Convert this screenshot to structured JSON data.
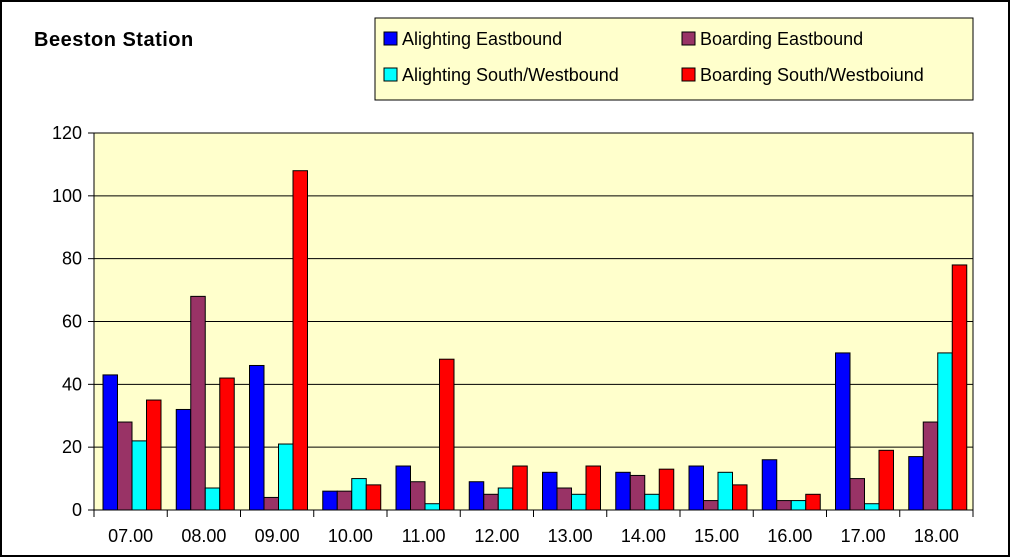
{
  "chart_data": {
    "type": "bar",
    "title": "Beeston Station",
    "xlabel": "",
    "ylabel": "",
    "ylim": [
      0,
      120
    ],
    "yticks": [
      0,
      20,
      40,
      60,
      80,
      100,
      120
    ],
    "grid": true,
    "legend_position": "top-right",
    "plot_background": "#ffffcc",
    "categories": [
      "07.00",
      "08.00",
      "09.00",
      "10.00",
      "11.00",
      "12.00",
      "13.00",
      "14.00",
      "15.00",
      "16.00",
      "17.00",
      "18.00"
    ],
    "series": [
      {
        "name": "Alighting Eastbound",
        "color": "#0000ff",
        "values": [
          43,
          32,
          46,
          6,
          14,
          9,
          12,
          12,
          14,
          16,
          50,
          17
        ]
      },
      {
        "name": "Boarding Eastbound",
        "color": "#993366",
        "values": [
          28,
          68,
          4,
          6,
          9,
          5,
          7,
          11,
          3,
          3,
          10,
          28
        ]
      },
      {
        "name": "Alighting South/Westbound",
        "color": "#00ffff",
        "values": [
          22,
          7,
          21,
          10,
          2,
          7,
          5,
          5,
          12,
          3,
          2,
          50
        ]
      },
      {
        "name": "Boarding South/Westboiund",
        "color": "#ff0000",
        "values": [
          35,
          42,
          108,
          8,
          48,
          14,
          14,
          13,
          8,
          5,
          19,
          78
        ]
      }
    ]
  }
}
